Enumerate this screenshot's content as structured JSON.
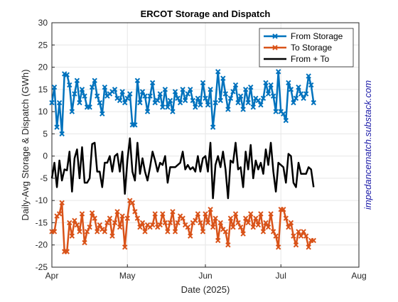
{
  "chart_data": {
    "type": "line",
    "title": "ERCOT Storage and Dispatch",
    "x_label": "Date (2025)",
    "y_label": "Daily-Avg Storage & Dispatch (GWh)",
    "annotation": "impedancematch.substack.com",
    "xlim": [
      0,
      122
    ],
    "xticks": [
      {
        "value": 0,
        "label": "Apr"
      },
      {
        "value": 30,
        "label": "May"
      },
      {
        "value": 61,
        "label": "Jun"
      },
      {
        "value": 91,
        "label": "Jul"
      },
      {
        "value": 122,
        "label": "Aug"
      }
    ],
    "ylim": [
      -25,
      30
    ],
    "yticks": [
      -25,
      -20,
      -15,
      -10,
      -5,
      0,
      5,
      10,
      15,
      20,
      25,
      30
    ],
    "grid": true,
    "legend": "upper right",
    "x": [
      0,
      1,
      2,
      3,
      4,
      5,
      6,
      7,
      8,
      9,
      10,
      11,
      12,
      13,
      14,
      15,
      16,
      17,
      18,
      19,
      20,
      21,
      22,
      23,
      24,
      25,
      26,
      27,
      28,
      29,
      30,
      31,
      32,
      33,
      34,
      35,
      36,
      37,
      38,
      39,
      40,
      41,
      42,
      43,
      44,
      45,
      46,
      47,
      48,
      49,
      50,
      51,
      52,
      53,
      54,
      55,
      56,
      57,
      58,
      59,
      60,
      61,
      62,
      63,
      64,
      65,
      66,
      67,
      68,
      69,
      70,
      71,
      72,
      73,
      74,
      75,
      76,
      77,
      78,
      79,
      80,
      81,
      82,
      83,
      84,
      85,
      86,
      87,
      88,
      89,
      90,
      91,
      92,
      93,
      94,
      95,
      96,
      97,
      98,
      99,
      100,
      101,
      102,
      103,
      104
    ],
    "series": [
      {
        "name": "From Storage",
        "color": "#0072bd",
        "marker": "x",
        "values": [
          12,
          15.5,
          6.5,
          12,
          5,
          18.5,
          18.3,
          16,
          10,
          14,
          17,
          12,
          15,
          13.5,
          11,
          11,
          15.5,
          17,
          13.5,
          12,
          9.5,
          15.5,
          13.5,
          14,
          14.5,
          15,
          13,
          12.5,
          14.5,
          12,
          13,
          14,
          7,
          7,
          17,
          12,
          14.5,
          13.5,
          10,
          13.5,
          16.5,
          12,
          12.5,
          14,
          11,
          15,
          11,
          12.5,
          10,
          14.5,
          13,
          12,
          15,
          12.5,
          14,
          15,
          12.5,
          11,
          13,
          11.5,
          16.5,
          13,
          11.5,
          15,
          6.5,
          12,
          19,
          12.5,
          17.5,
          14,
          10.5,
          13,
          14.5,
          16,
          12,
          13.5,
          10.5,
          15,
          12,
          15.5,
          11,
          13,
          12.5,
          11.5,
          13,
          16.5,
          14,
          16,
          13.5,
          10,
          19,
          10,
          9.5,
          8,
          16.5,
          15,
          12,
          13,
          15.5,
          14,
          13,
          14,
          18,
          16,
          12
        ]
      },
      {
        "name": "To Storage",
        "color": "#d95319",
        "marker": "x",
        "values": [
          -17,
          -17,
          -13.5,
          -13,
          -10.5,
          -21.5,
          -21.5,
          -15,
          -18,
          -14.5,
          -15.5,
          -17,
          -13,
          -19.5,
          -17,
          -16,
          -12.8,
          -14,
          -17,
          -15.5,
          -16.5,
          -17,
          -15,
          -14,
          -18,
          -15,
          -12.5,
          -16,
          -13.5,
          -20.5,
          -14,
          -10,
          -10.5,
          -12.5,
          -14,
          -16,
          -15,
          -17,
          -15.5,
          -16,
          -15.5,
          -13,
          -16,
          -15.5,
          -13,
          -15,
          -17,
          -15,
          -12.5,
          -17,
          -15,
          -13.5,
          -14,
          -15.5,
          -16,
          -18,
          -15,
          -14.5,
          -13,
          -15,
          -17,
          -13,
          -15,
          -12,
          -16,
          -14,
          -19,
          -15,
          -16.5,
          -17,
          -20,
          -14,
          -16,
          -13,
          -15,
          -16,
          -17.5,
          -14,
          -15,
          -13,
          -16,
          -14,
          -15.5,
          -13,
          -17,
          -15,
          -16,
          -13,
          -17,
          -18,
          -20.5,
          -12,
          -12,
          -14,
          -16,
          -15,
          -18,
          -20,
          -17,
          -18,
          -17,
          -18,
          -20.5,
          -19,
          -19
        ]
      },
      {
        "name": "From + To",
        "color": "#000000",
        "values": [
          -5,
          -1.5,
          -7,
          -1,
          -5.5,
          -3,
          -3.2,
          1,
          -8,
          -0.5,
          1.5,
          -5,
          2,
          -6,
          -6,
          -5,
          2.7,
          3,
          -3.5,
          -3.5,
          -7,
          -1.5,
          -1.5,
          0,
          -3.5,
          0,
          0.5,
          -3.5,
          1,
          -8.5,
          -1,
          4,
          -3.5,
          -5.5,
          3,
          -4,
          -0.5,
          -3.5,
          -5.5,
          -2.5,
          1,
          -1,
          -3.5,
          -1.5,
          -2,
          0,
          -6,
          -2.5,
          -2.5,
          -2.5,
          -2,
          -1.5,
          1,
          -3,
          -2,
          -3,
          -2.5,
          -3.5,
          0,
          -3.5,
          -0.5,
          0,
          -3.5,
          3,
          -9.5,
          -2,
          0,
          -2.5,
          1,
          -3,
          -9.5,
          -1,
          -1.5,
          3,
          -3,
          -2.5,
          -7,
          1,
          -3,
          2.5,
          -5,
          -1,
          -3,
          -1.5,
          -4,
          1.5,
          -2,
          3,
          -3.5,
          -8,
          -1.5,
          -2,
          -2.5,
          -6,
          0.5,
          0,
          -6,
          -7,
          -1.5,
          -4,
          -4,
          -4,
          -2.5,
          -3,
          -7
        ]
      }
    ]
  }
}
